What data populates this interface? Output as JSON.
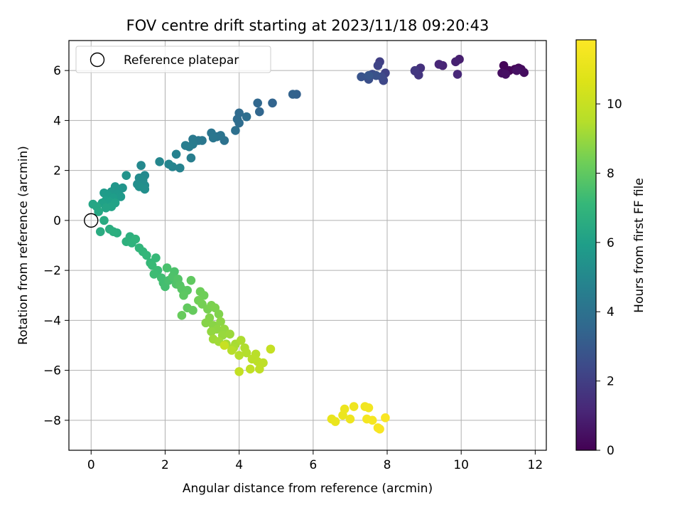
{
  "chart_data": {
    "type": "scatter",
    "title": "FOV centre drift starting at 2023/11/18 09:20:43",
    "xlabel": "Angular distance from reference (arcmin)",
    "ylabel": "Rotation from reference (arcmin)",
    "xlim": [
      -0.6,
      12.3
    ],
    "ylim": [
      -9.2,
      7.2
    ],
    "xticks": [
      0,
      2,
      4,
      6,
      8,
      10,
      12
    ],
    "yticks": [
      -8,
      -6,
      -4,
      -2,
      0,
      2,
      4,
      6
    ],
    "grid": true,
    "legend": {
      "placement": "top-left",
      "entries": [
        "Reference platepar"
      ]
    },
    "reference_point": {
      "x": 0,
      "y": 0
    },
    "colorbar": {
      "label": "Hours from first FF file",
      "colormap": "viridis",
      "range": [
        0,
        11.85
      ],
      "ticks": [
        0,
        2,
        4,
        6,
        8,
        10
      ]
    },
    "points": [
      [
        11.15,
        6.2,
        0.1
      ],
      [
        11.3,
        6.0,
        0.15
      ],
      [
        11.45,
        6.05,
        0.2
      ],
      [
        11.55,
        6.1,
        0.25
      ],
      [
        11.62,
        6.05,
        0.3
      ],
      [
        11.7,
        5.92,
        0.35
      ],
      [
        11.1,
        5.9,
        0.4
      ],
      [
        11.2,
        5.85,
        0.45
      ],
      [
        11.5,
        6.0,
        0.5
      ],
      [
        9.95,
        6.45,
        0.9
      ],
      [
        9.85,
        6.35,
        1.0
      ],
      [
        9.5,
        6.2,
        1.1
      ],
      [
        9.4,
        6.25,
        1.15
      ],
      [
        9.9,
        5.85,
        1.2
      ],
      [
        8.9,
        6.1,
        1.5
      ],
      [
        8.75,
        6.0,
        1.6
      ],
      [
        8.85,
        5.82,
        1.7
      ],
      [
        8.75,
        5.98,
        1.75
      ],
      [
        7.8,
        6.35,
        2.0
      ],
      [
        7.95,
        5.9,
        2.1
      ],
      [
        7.75,
        6.2,
        2.2
      ],
      [
        7.9,
        5.6,
        2.3
      ],
      [
        7.85,
        5.75,
        2.4
      ],
      [
        7.6,
        5.85,
        2.5
      ],
      [
        7.5,
        5.65,
        2.6
      ],
      [
        7.7,
        5.8,
        2.7
      ],
      [
        7.3,
        5.75,
        2.8
      ],
      [
        7.5,
        5.8,
        2.9
      ],
      [
        5.55,
        5.05,
        3.3
      ],
      [
        5.45,
        5.05,
        3.35
      ],
      [
        4.9,
        4.7,
        3.45
      ],
      [
        4.55,
        4.35,
        3.5
      ],
      [
        4.5,
        4.7,
        3.55
      ],
      [
        4.0,
        4.3,
        3.7
      ],
      [
        3.95,
        4.05,
        3.75
      ],
      [
        4.0,
        3.9,
        3.8
      ],
      [
        4.2,
        4.15,
        3.85
      ],
      [
        3.9,
        3.6,
        3.9
      ],
      [
        3.6,
        3.2,
        4.0
      ],
      [
        3.4,
        3.35,
        4.05
      ],
      [
        3.5,
        3.4,
        4.1
      ],
      [
        3.25,
        3.5,
        4.15
      ],
      [
        3.3,
        3.3,
        4.2
      ],
      [
        3.0,
        3.2,
        4.25
      ],
      [
        2.9,
        3.2,
        4.3
      ],
      [
        2.75,
        3.25,
        4.35
      ],
      [
        2.75,
        3.05,
        4.4
      ],
      [
        2.65,
        2.95,
        4.45
      ],
      [
        2.55,
        3.0,
        4.5
      ],
      [
        2.7,
        2.5,
        4.55
      ],
      [
        2.3,
        2.65,
        4.7
      ],
      [
        2.4,
        2.1,
        4.75
      ],
      [
        2.2,
        2.15,
        4.8
      ],
      [
        2.1,
        2.25,
        4.85
      ],
      [
        1.85,
        2.35,
        4.9
      ],
      [
        1.35,
        2.2,
        5.0
      ],
      [
        1.45,
        1.8,
        5.05
      ],
      [
        1.3,
        1.7,
        5.1
      ],
      [
        1.4,
        1.6,
        5.15
      ],
      [
        1.45,
        1.4,
        5.2
      ],
      [
        1.25,
        1.45,
        5.25
      ],
      [
        1.45,
        1.25,
        5.3
      ],
      [
        1.3,
        1.35,
        5.35
      ],
      [
        0.95,
        1.8,
        5.45
      ],
      [
        0.85,
        1.3,
        5.5
      ],
      [
        0.75,
        1.2,
        5.55
      ],
      [
        0.65,
        1.35,
        5.6
      ],
      [
        0.55,
        1.15,
        5.65
      ],
      [
        0.7,
        1.05,
        5.7
      ],
      [
        0.8,
        0.95,
        5.75
      ],
      [
        0.35,
        1.1,
        5.8
      ],
      [
        0.45,
        1.0,
        5.85
      ],
      [
        0.6,
        0.9,
        5.9
      ],
      [
        0.4,
        0.8,
        5.95
      ],
      [
        0.5,
        0.75,
        6.0
      ],
      [
        0.3,
        0.7,
        6.05
      ],
      [
        0.65,
        0.7,
        6.1
      ],
      [
        0.55,
        0.55,
        6.15
      ],
      [
        0.4,
        0.5,
        6.2
      ],
      [
        0.05,
        0.65,
        6.25
      ],
      [
        0.15,
        0.55,
        6.3
      ],
      [
        0.2,
        0.35,
        6.35
      ],
      [
        0.35,
        0.0,
        6.5
      ],
      [
        0.25,
        -0.45,
        6.55
      ],
      [
        0.5,
        -0.35,
        6.6
      ],
      [
        0.7,
        -0.5,
        6.65
      ],
      [
        0.6,
        -0.45,
        6.7
      ],
      [
        1.05,
        -0.65,
        6.75
      ],
      [
        0.95,
        -0.85,
        6.8
      ],
      [
        1.1,
        -0.9,
        6.85
      ],
      [
        1.2,
        -0.75,
        6.9
      ],
      [
        1.3,
        -1.1,
        6.95
      ],
      [
        1.4,
        -1.25,
        7.0
      ],
      [
        1.5,
        -1.4,
        7.05
      ],
      [
        1.6,
        -1.7,
        7.1
      ],
      [
        1.75,
        -1.5,
        7.15
      ],
      [
        1.65,
        -1.8,
        7.2
      ],
      [
        1.8,
        -2.0,
        7.25
      ],
      [
        1.7,
        -2.15,
        7.3
      ],
      [
        1.9,
        -2.3,
        7.35
      ],
      [
        1.95,
        -2.5,
        7.4
      ],
      [
        2.0,
        -2.65,
        7.45
      ],
      [
        2.1,
        -2.4,
        7.5
      ],
      [
        2.05,
        -1.9,
        7.55
      ],
      [
        2.25,
        -2.05,
        7.6
      ],
      [
        2.2,
        -2.25,
        7.65
      ],
      [
        2.3,
        -2.55,
        7.7
      ],
      [
        2.35,
        -2.35,
        7.75
      ],
      [
        2.4,
        -2.6,
        7.8
      ],
      [
        2.45,
        -2.75,
        7.85
      ],
      [
        2.6,
        -2.8,
        7.9
      ],
      [
        2.5,
        -3.0,
        7.95
      ],
      [
        2.7,
        -2.4,
        8.0
      ],
      [
        2.6,
        -3.5,
        8.05
      ],
      [
        2.75,
        -3.6,
        8.1
      ],
      [
        2.45,
        -3.8,
        8.15
      ],
      [
        2.95,
        -2.85,
        8.25
      ],
      [
        3.05,
        -3.0,
        8.3
      ],
      [
        2.9,
        -3.2,
        8.35
      ],
      [
        3.0,
        -3.35,
        8.4
      ],
      [
        3.15,
        -3.55,
        8.45
      ],
      [
        3.25,
        -3.4,
        8.5
      ],
      [
        3.35,
        -3.5,
        8.55
      ],
      [
        3.45,
        -3.75,
        8.6
      ],
      [
        3.2,
        -3.9,
        8.65
      ],
      [
        3.1,
        -4.1,
        8.7
      ],
      [
        3.3,
        -4.2,
        8.75
      ],
      [
        3.5,
        -4.05,
        8.8
      ],
      [
        3.4,
        -4.35,
        8.85
      ],
      [
        3.25,
        -4.45,
        8.9
      ],
      [
        3.6,
        -4.35,
        8.95
      ],
      [
        3.55,
        -4.6,
        9.0
      ],
      [
        3.75,
        -4.55,
        9.05
      ],
      [
        3.3,
        -4.75,
        9.1
      ],
      [
        3.45,
        -4.85,
        9.15
      ],
      [
        3.65,
        -4.95,
        9.2
      ],
      [
        3.9,
        -4.95,
        9.25
      ],
      [
        3.85,
        -5.1,
        9.3
      ],
      [
        4.05,
        -4.8,
        9.35
      ],
      [
        4.15,
        -5.1,
        9.4
      ],
      [
        4.2,
        -5.3,
        9.45
      ],
      [
        4.0,
        -5.4,
        9.5
      ],
      [
        3.8,
        -5.2,
        9.55
      ],
      [
        4.45,
        -5.35,
        9.6
      ],
      [
        4.35,
        -5.55,
        9.65
      ],
      [
        4.5,
        -5.65,
        9.7
      ],
      [
        4.65,
        -5.7,
        9.75
      ],
      [
        4.55,
        -5.95,
        9.8
      ],
      [
        4.3,
        -5.95,
        9.85
      ],
      [
        4.0,
        -6.05,
        9.9
      ],
      [
        4.85,
        -5.15,
        9.95
      ],
      [
        3.6,
        -5.0,
        10.0
      ],
      [
        6.5,
        -7.95,
        11.1
      ],
      [
        6.6,
        -8.05,
        11.15
      ],
      [
        6.8,
        -7.8,
        11.2
      ],
      [
        6.85,
        -7.55,
        11.25
      ],
      [
        7.0,
        -7.95,
        11.3
      ],
      [
        7.1,
        -7.45,
        11.35
      ],
      [
        7.4,
        -7.45,
        11.4
      ],
      [
        7.5,
        -7.5,
        11.45
      ],
      [
        7.45,
        -7.95,
        11.5
      ],
      [
        7.6,
        -8.0,
        11.55
      ],
      [
        7.75,
        -8.3,
        11.6
      ],
      [
        7.8,
        -8.35,
        11.65
      ],
      [
        7.95,
        -7.9,
        11.7
      ]
    ]
  }
}
